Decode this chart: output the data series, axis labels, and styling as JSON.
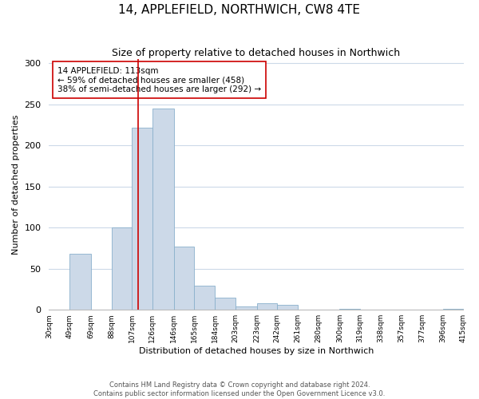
{
  "title": "14, APPLEFIELD, NORTHWICH, CW8 4TE",
  "subtitle": "Size of property relative to detached houses in Northwich",
  "xlabel": "Distribution of detached houses by size in Northwich",
  "ylabel": "Number of detached properties",
  "bar_edges": [
    30,
    49,
    69,
    88,
    107,
    126,
    146,
    165,
    184,
    203,
    223,
    242,
    261,
    280,
    300,
    319,
    338,
    357,
    377,
    396,
    415
  ],
  "bar_heights": [
    0,
    68,
    0,
    100,
    222,
    245,
    77,
    29,
    15,
    4,
    8,
    6,
    0,
    0,
    1,
    0,
    0,
    0,
    0,
    1
  ],
  "bar_color": "#ccd9e8",
  "bar_edgecolor": "#8ab0cc",
  "vline_x": 113,
  "vline_color": "#cc0000",
  "annotation_line1": "14 APPLEFIELD: 113sqm",
  "annotation_line2": "← 59% of detached houses are smaller (458)",
  "annotation_line3": "38% of semi-detached houses are larger (292) →",
  "annotation_box_color": "#ffffff",
  "annotation_box_edgecolor": "#cc0000",
  "ylim": [
    0,
    305
  ],
  "yticks": [
    0,
    50,
    100,
    150,
    200,
    250,
    300
  ],
  "footer_line1": "Contains HM Land Registry data © Crown copyright and database right 2024.",
  "footer_line2": "Contains public sector information licensed under the Open Government Licence v3.0.",
  "background_color": "#ffffff",
  "grid_color": "#ccd9e8",
  "title_fontsize": 11,
  "subtitle_fontsize": 9,
  "axis_label_fontsize": 8,
  "tick_label_fontsize": 6.5,
  "tick_labels": [
    "30sqm",
    "49sqm",
    "69sqm",
    "88sqm",
    "107sqm",
    "126sqm",
    "146sqm",
    "165sqm",
    "184sqm",
    "203sqm",
    "223sqm",
    "242sqm",
    "261sqm",
    "280sqm",
    "300sqm",
    "319sqm",
    "338sqm",
    "357sqm",
    "377sqm",
    "396sqm",
    "415sqm"
  ]
}
